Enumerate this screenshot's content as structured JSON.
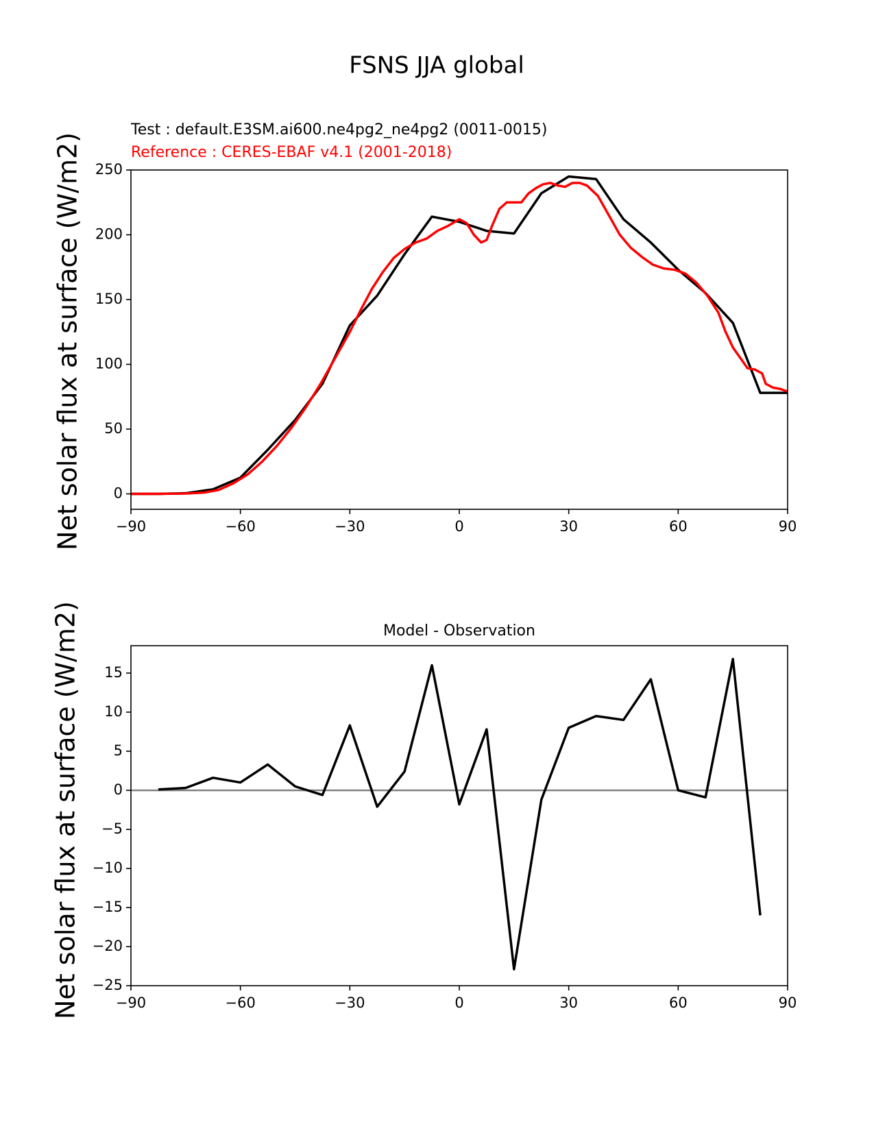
{
  "figure": {
    "title": "FSNS JJA global"
  },
  "colors": {
    "test": "#000000",
    "reference": "#ff0000",
    "zero_line": "#808080"
  },
  "chart_data": [
    {
      "type": "line",
      "test_label": "Test : default.E3SM.ai600.ne4pg2_ne4pg2 (0011-0015)",
      "reference_label": "Reference : CERES-EBAF v4.1 (2001-2018)",
      "xlabel": "",
      "ylabel": "Net solar flux at surface (W/m2)",
      "xlim": [
        -90,
        90
      ],
      "ylim": [
        -11.9,
        250
      ],
      "xticks": [
        -90,
        -60,
        -30,
        0,
        30,
        60,
        90
      ],
      "xtick_labels": [
        "−90",
        "−60",
        "−30",
        "0",
        "30",
        "60",
        "90"
      ],
      "yticks": [
        0,
        50,
        100,
        150,
        200,
        250
      ],
      "ytick_labels": [
        "0",
        "50",
        "100",
        "150",
        "200",
        "250"
      ],
      "series": [
        {
          "name": "Test",
          "x": [
            -90,
            -82.5,
            -75,
            -67.5,
            -60,
            -52.5,
            -45,
            -37.5,
            -30,
            -22.5,
            -15,
            -7.5,
            0,
            7.5,
            15,
            22.5,
            30,
            37.5,
            45,
            52.5,
            60,
            67.5,
            75,
            82.5,
            90
          ],
          "values": [
            0,
            0,
            0.5,
            3.5,
            12.5,
            34,
            57,
            85,
            130,
            153,
            185,
            214,
            210,
            203,
            201,
            232,
            245,
            243,
            212,
            194,
            173,
            155,
            132,
            78,
            78
          ]
        },
        {
          "name": "Reference",
          "x": [
            -90,
            -82,
            -75,
            -70,
            -66,
            -62,
            -58,
            -54,
            -50,
            -46,
            -42,
            -38,
            -34,
            -30,
            -27,
            -24,
            -21,
            -18,
            -15,
            -12,
            -9,
            -6,
            -3,
            0,
            2,
            4,
            6,
            7.5,
            9,
            11,
            13,
            15,
            17,
            19,
            21,
            23,
            25,
            27,
            29,
            31,
            33,
            35,
            38,
            41,
            44,
            47,
            50,
            53,
            56,
            59,
            62,
            65,
            68,
            71,
            73,
            75,
            77,
            79,
            81,
            83,
            84,
            86,
            88,
            90
          ],
          "values": [
            0,
            0,
            0.3,
            1,
            3,
            8,
            15,
            25,
            37,
            51,
            67,
            85,
            105,
            125,
            142,
            158,
            171,
            182,
            189,
            194,
            197,
            203,
            207,
            212,
            209,
            200,
            194,
            196,
            207,
            220,
            225,
            225,
            225,
            232,
            236,
            239,
            240,
            238,
            237,
            240,
            240,
            238,
            230,
            215,
            200,
            190,
            183,
            177,
            174,
            173,
            170,
            163,
            153,
            140,
            125,
            113,
            105,
            97,
            96,
            93,
            85,
            82,
            81,
            79
          ]
        }
      ]
    },
    {
      "type": "line",
      "title": "Model - Observation",
      "xlabel": "",
      "ylabel": "Net solar flux at surface (W/m2)",
      "xlim": [
        -90,
        90
      ],
      "ylim": [
        -25,
        18.5
      ],
      "xticks": [
        -90,
        -60,
        -30,
        0,
        30,
        60,
        90
      ],
      "xtick_labels": [
        "−90",
        "−60",
        "−30",
        "0",
        "30",
        "60",
        "90"
      ],
      "yticks": [
        -25,
        -20,
        -15,
        -10,
        -5,
        0,
        5,
        10,
        15
      ],
      "ytick_labels": [
        "−25",
        "−20",
        "−15",
        "−10",
        "−5",
        "0",
        "5",
        "10",
        "15"
      ],
      "series": [
        {
          "name": "Model - Observation",
          "x": [
            -82.5,
            -75,
            -67.5,
            -60,
            -52.5,
            -45,
            -37.5,
            -30,
            -22.5,
            -15,
            -7.5,
            0,
            7.5,
            15,
            22.5,
            30,
            37.5,
            45,
            52.5,
            60,
            67.5,
            75,
            82.5
          ],
          "values": [
            0.1,
            0.3,
            1.6,
            1.0,
            3.3,
            0.5,
            -0.6,
            8.3,
            -2.1,
            2.4,
            16.0,
            -1.8,
            7.8,
            -22.9,
            -1.2,
            8.0,
            9.5,
            9.0,
            14.2,
            0,
            -0.9,
            16.8,
            -16.0
          ]
        }
      ],
      "reference_line": {
        "y": 0
      }
    }
  ]
}
